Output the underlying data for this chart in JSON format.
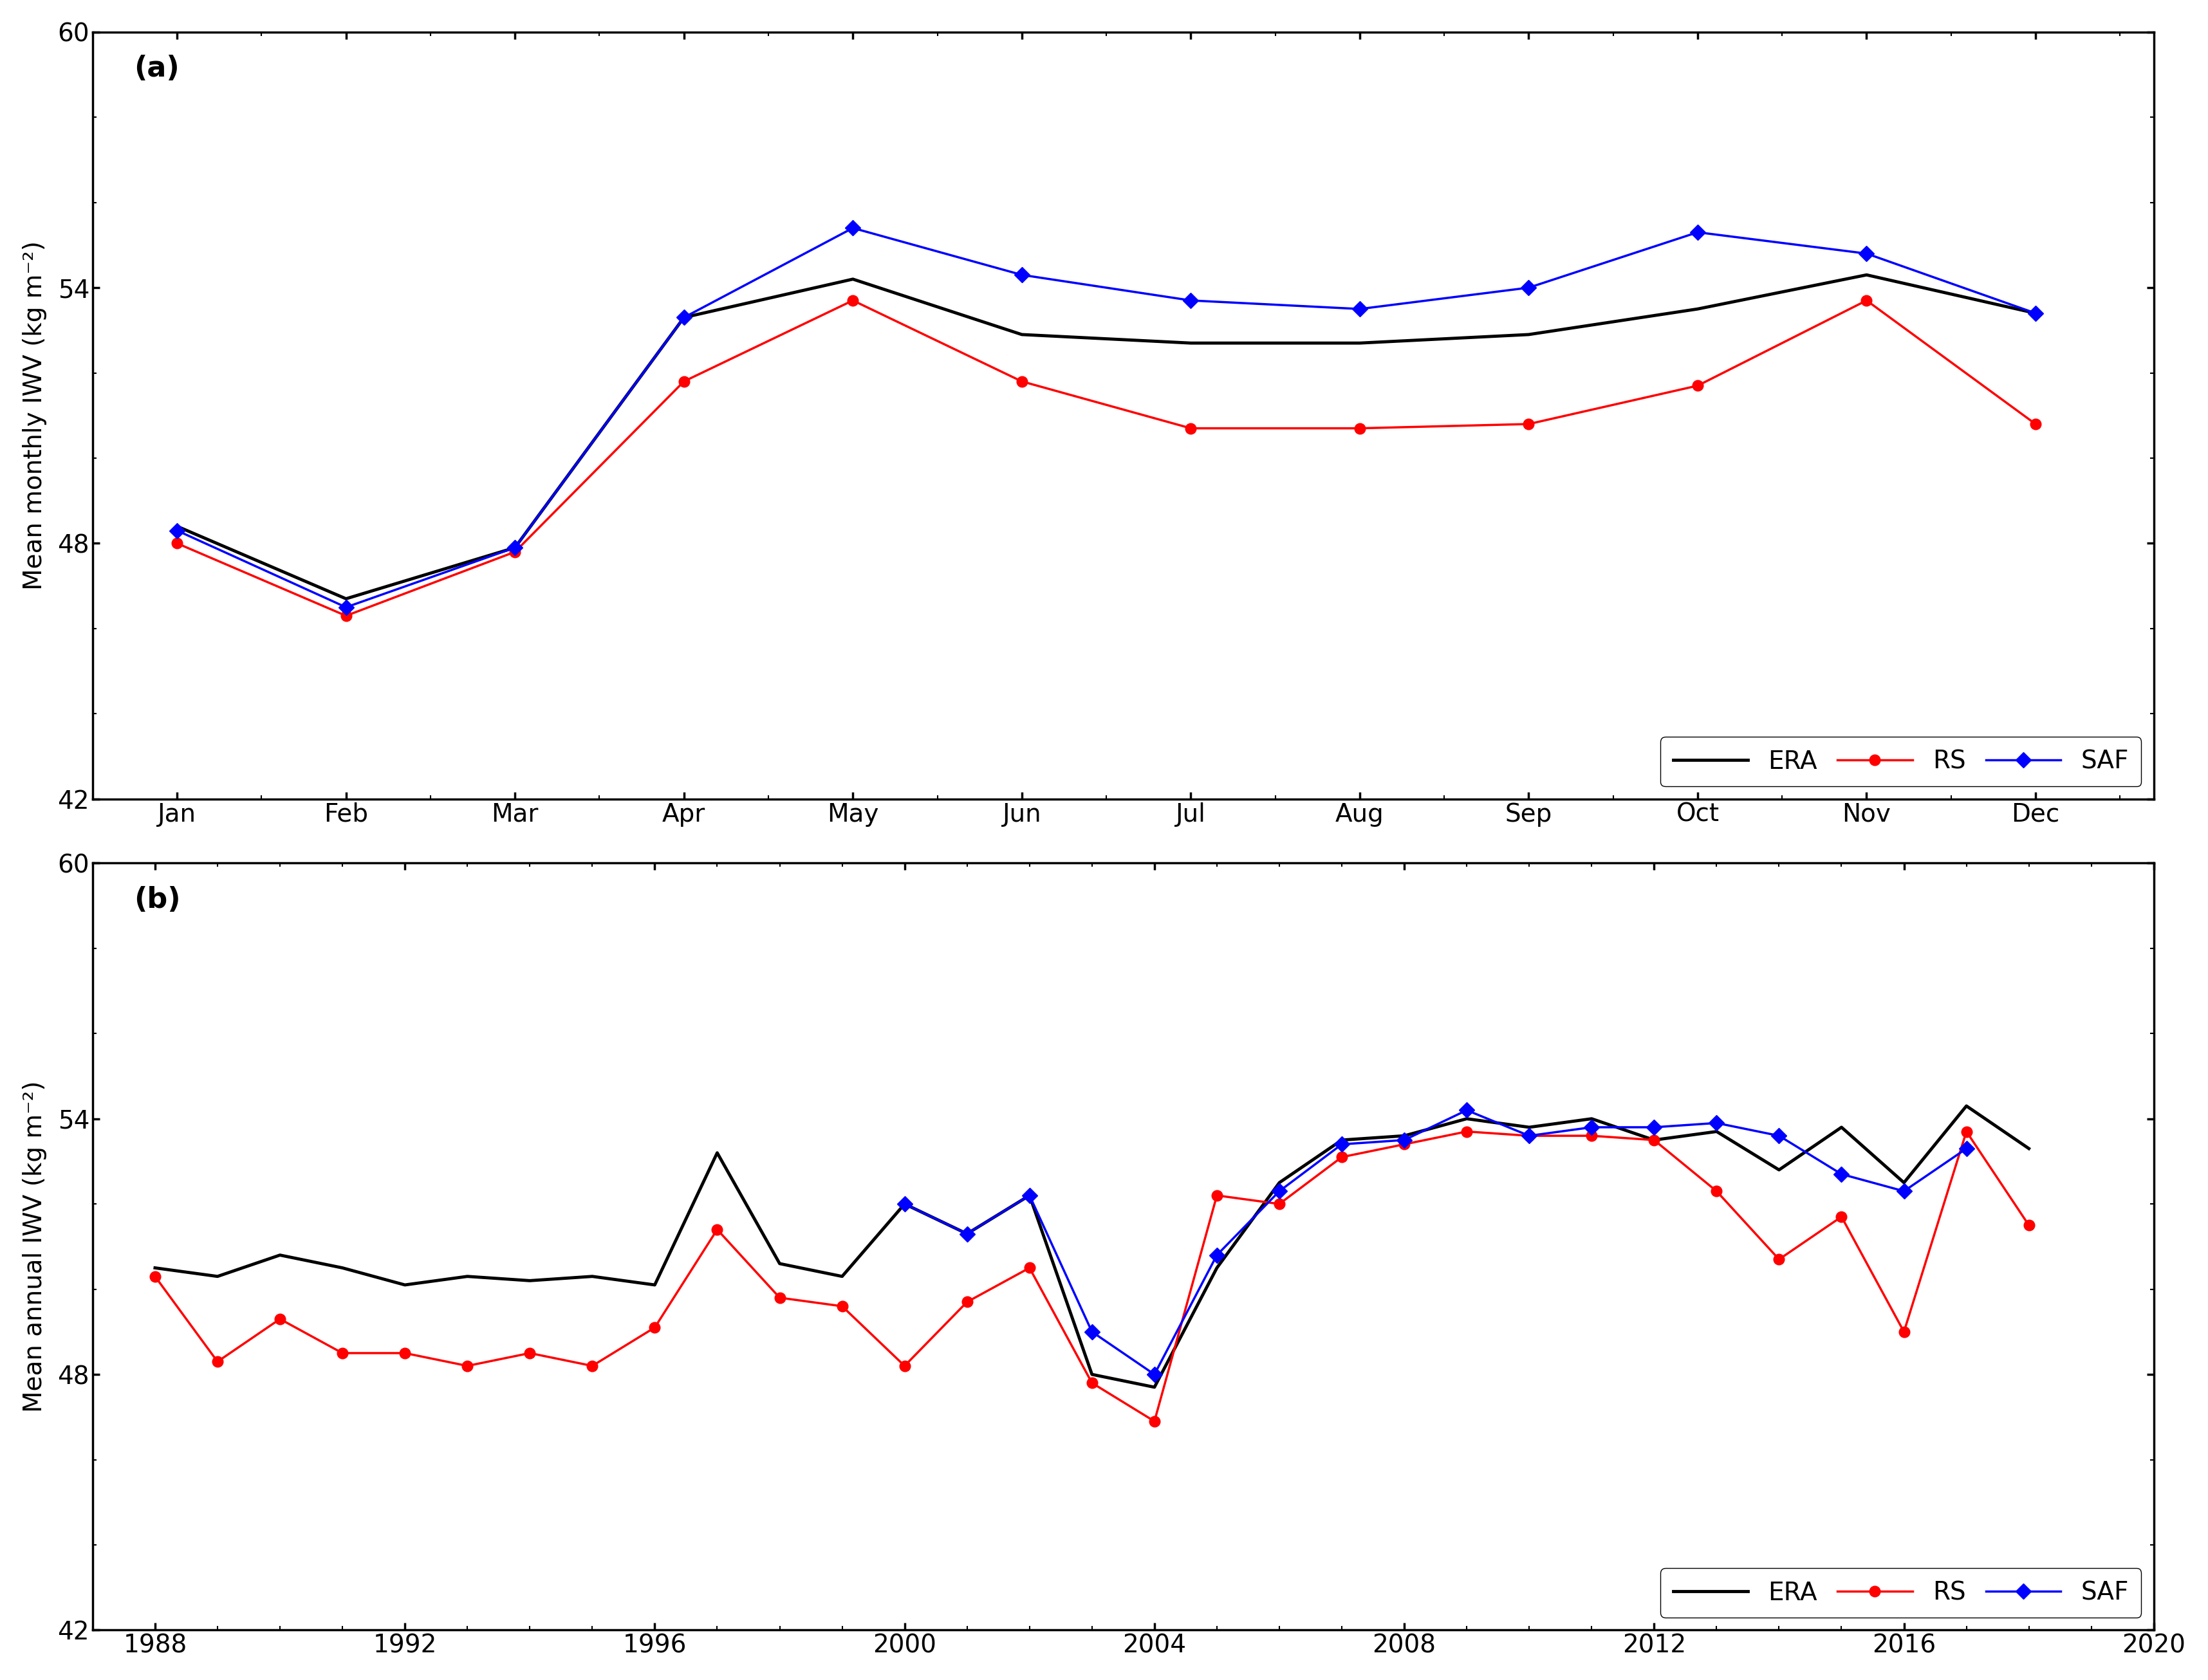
{
  "panel_a": {
    "months": [
      "Jan",
      "Feb",
      "Mar",
      "Apr",
      "May",
      "Jun",
      "Jul",
      "Aug",
      "Sep",
      "Oct",
      "Nov",
      "Dec"
    ],
    "ERA": [
      48.4,
      46.7,
      47.9,
      53.3,
      54.2,
      52.9,
      52.7,
      52.7,
      52.9,
      53.5,
      54.3,
      53.4
    ],
    "RS": [
      48.0,
      46.3,
      47.8,
      51.8,
      53.7,
      51.8,
      50.7,
      50.7,
      50.8,
      51.7,
      53.7,
      50.8
    ],
    "SAF": [
      48.3,
      46.5,
      47.9,
      53.3,
      55.4,
      54.3,
      53.7,
      53.5,
      54.0,
      55.3,
      54.8,
      53.4
    ],
    "ylabel": "Mean monthly IWV (kg m⁻²)",
    "ylim": [
      42,
      60
    ],
    "yticks": [
      42,
      48,
      54,
      60
    ],
    "label": "(a)"
  },
  "panel_b": {
    "years_ERA": [
      1988,
      1989,
      1990,
      1991,
      1992,
      1993,
      1994,
      1995,
      1996,
      1997,
      1998,
      1999,
      2000,
      2001,
      2002,
      2003,
      2004,
      2005,
      2006,
      2007,
      2008,
      2009,
      2010,
      2011,
      2012,
      2013,
      2014,
      2015,
      2016,
      2017,
      2018
    ],
    "ERA": [
      50.5,
      50.3,
      50.8,
      50.5,
      50.1,
      50.3,
      50.2,
      50.3,
      50.1,
      53.2,
      50.6,
      50.3,
      52.0,
      51.3,
      52.2,
      48.0,
      47.7,
      50.5,
      52.5,
      53.5,
      53.6,
      54.0,
      53.8,
      54.0,
      53.5,
      53.7,
      52.8,
      53.8,
      52.5,
      54.3,
      53.3
    ],
    "years_RS": [
      1988,
      1989,
      1990,
      1991,
      1992,
      1993,
      1994,
      1995,
      1996,
      1997,
      1998,
      1999,
      2000,
      2001,
      2002,
      2003,
      2004,
      2005,
      2006,
      2007,
      2008,
      2009,
      2010,
      2011,
      2012,
      2013,
      2014,
      2015,
      2016,
      2017,
      2018
    ],
    "RS": [
      50.3,
      48.3,
      49.3,
      48.5,
      48.5,
      48.2,
      48.5,
      48.2,
      49.1,
      51.4,
      49.8,
      49.6,
      48.2,
      49.7,
      50.5,
      47.8,
      46.9,
      52.2,
      52.0,
      53.1,
      53.4,
      53.7,
      53.6,
      53.6,
      53.5,
      52.3,
      50.7,
      51.7,
      49.0,
      53.7,
      51.5
    ],
    "years_SAF": [
      2000,
      2001,
      2002,
      2003,
      2004,
      2005,
      2006,
      2007,
      2008,
      2009,
      2010,
      2011,
      2012,
      2013,
      2014,
      2015,
      2016,
      2017
    ],
    "SAF": [
      52.0,
      51.3,
      52.2,
      49.0,
      48.0,
      50.8,
      52.3,
      53.4,
      53.5,
      54.2,
      53.6,
      53.8,
      53.8,
      53.9,
      53.6,
      52.7,
      52.3,
      53.3
    ],
    "ylabel": "Mean annual IWV (kg m⁻²)",
    "ylim": [
      42,
      60
    ],
    "yticks": [
      42,
      48,
      54,
      60
    ],
    "xlim": [
      1987,
      2020
    ],
    "xticks": [
      1988,
      1992,
      1996,
      2000,
      2004,
      2008,
      2012,
      2016,
      2020
    ],
    "label": "(b)"
  },
  "era_color": "#000000",
  "rs_color": "#ff0000",
  "saf_color": "#0000ff",
  "era_lw": 3.5,
  "rs_lw": 2.5,
  "saf_lw": 2.5,
  "marker_size": 12,
  "tick_fontsize": 28,
  "label_fontsize": 28,
  "panel_label_fontsize": 32
}
